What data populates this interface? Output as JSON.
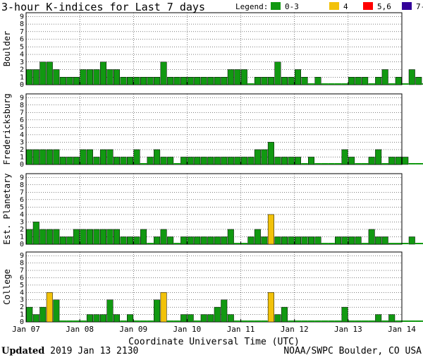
{
  "header": {
    "title": "3-hour K-indices for Last 7 days",
    "legend_label": "Legend:",
    "legend": [
      {
        "label": "0-3",
        "color": "#119911"
      },
      {
        "label": "4",
        "color": "#f2c20a"
      },
      {
        "label": "5,6",
        "color": "#ff0000"
      },
      {
        "label": "7-9",
        "color": "#330099"
      }
    ]
  },
  "footer": {
    "updated_label": "Updated",
    "updated_value": "2019 Jan 13 2130",
    "source": "NOAA/SWPC Boulder, CO USA"
  },
  "chart_data": {
    "type": "bar",
    "xlabel": "Coordinate Universal Time (UTC)",
    "x_tick_labels": [
      "Jan 07",
      "Jan 08",
      "Jan 09",
      "Jan 10",
      "Jan 11",
      "Jan 12",
      "Jan 13",
      "Jan 14"
    ],
    "ylim": [
      0,
      9
    ],
    "y_ticks": [
      0,
      1,
      2,
      3,
      4,
      5,
      6,
      7,
      8,
      9
    ],
    "bins_per_day": 8,
    "series": [
      {
        "name": "Boulder",
        "values": [
          2,
          2,
          3,
          3,
          2,
          1,
          1,
          1,
          2,
          2,
          2,
          3,
          2,
          2,
          1,
          1,
          1,
          1,
          1,
          1,
          3,
          1,
          1,
          1,
          1,
          1,
          1,
          1,
          1,
          1,
          2,
          2,
          2,
          0,
          1,
          1,
          1,
          3,
          1,
          1,
          2,
          1,
          0,
          1,
          0,
          0,
          0,
          0,
          1,
          1,
          1,
          0,
          1,
          2,
          0,
          1,
          0,
          2,
          1,
          0
        ]
      },
      {
        "name": "Fredericksburg",
        "values": [
          2,
          2,
          2,
          2,
          2,
          1,
          1,
          1,
          2,
          2,
          1,
          2,
          2,
          1,
          1,
          1,
          2,
          0,
          1,
          2,
          1,
          1,
          0,
          1,
          1,
          1,
          1,
          1,
          1,
          1,
          1,
          1,
          1,
          1,
          2,
          2,
          3,
          1,
          1,
          1,
          1,
          0,
          1,
          0,
          0,
          0,
          0,
          2,
          1,
          0,
          0,
          1,
          2,
          0,
          1,
          1,
          1,
          0,
          0,
          0
        ]
      },
      {
        "name": "Est. Planetary",
        "values": [
          2,
          3,
          2,
          2,
          2,
          1,
          1,
          2,
          2,
          2,
          2,
          2,
          2,
          2,
          1,
          1,
          1,
          2,
          0,
          1,
          2,
          1,
          0,
          1,
          1,
          1,
          1,
          1,
          1,
          1,
          2,
          0,
          0,
          1,
          2,
          1,
          4,
          1,
          1,
          1,
          1,
          1,
          1,
          1,
          0,
          0,
          1,
          1,
          1,
          1,
          0,
          2,
          1,
          1,
          0,
          0,
          0,
          1,
          0,
          0
        ]
      },
      {
        "name": "College",
        "values": [
          2,
          1,
          2,
          4,
          3,
          0,
          0,
          0,
          0,
          1,
          1,
          1,
          3,
          1,
          0,
          1,
          0,
          0,
          0,
          3,
          4,
          0,
          0,
          1,
          1,
          0,
          1,
          1,
          2,
          3,
          1,
          0,
          0,
          0,
          0,
          0,
          4,
          1,
          2,
          0,
          0,
          0,
          0,
          0,
          0,
          0,
          0,
          2,
          0,
          0,
          0,
          0,
          1,
          0,
          1,
          0,
          0,
          0,
          0,
          0
        ]
      }
    ]
  }
}
